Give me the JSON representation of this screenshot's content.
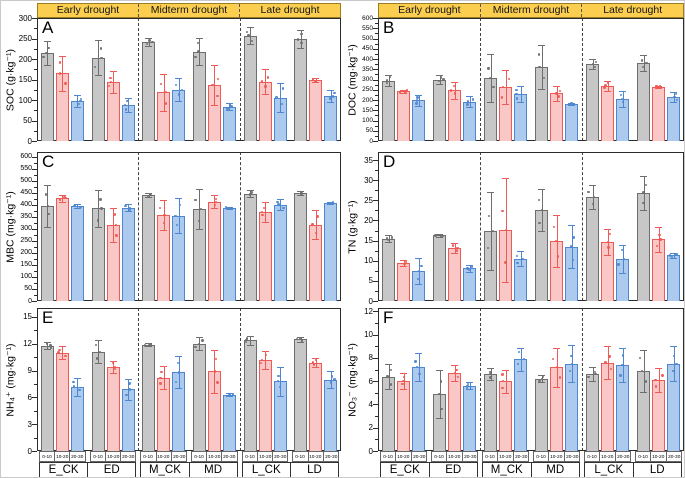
{
  "figure": {
    "header_labels": [
      "Early drought",
      "Midterm drought",
      "Late drought"
    ],
    "depth_labels": [
      "0-10",
      "10-20",
      "20-30"
    ],
    "group_labels": [
      "E_CK",
      "ED",
      "M_CK",
      "MD",
      "L_CK",
      "LD"
    ],
    "colors": {
      "header_bg": "#FBCE50",
      "header_border": "#9a7d22",
      "frame": "#2b2b2b",
      "dashed_line": "#444444",
      "series": [
        {
          "name": "0-10",
          "fill": "#c7c7c7",
          "stroke": "#6e6e6e"
        },
        {
          "name": "10-20",
          "fill": "#f9c8c6",
          "stroke": "#ee5a55"
        },
        {
          "name": "20-30",
          "fill": "#accaee",
          "stroke": "#4e86d0"
        }
      ]
    }
  },
  "chart_data": [
    {
      "type": "bar",
      "label": "A",
      "ylabel": "SOC (g·kg⁻¹)",
      "ylim": [
        0,
        300
      ],
      "ytick_step": 50,
      "ytick_max": 300,
      "categories": [
        "E_CK",
        "ED",
        "M_CK",
        "MD",
        "L_CK",
        "LD"
      ],
      "series": [
        {
          "name": "0-10",
          "values": [
            215,
            203,
            242,
            218,
            257,
            248
          ],
          "errors": [
            30,
            43,
            10,
            33,
            20,
            22
          ]
        },
        {
          "name": "10-20",
          "values": [
            165,
            144,
            119,
            136,
            145,
            149
          ],
          "errors": [
            43,
            26,
            45,
            49,
            30,
            5
          ]
        },
        {
          "name": "20-30",
          "values": [
            97,
            88,
            125,
            84,
            106,
            109
          ],
          "errors": [
            15,
            18,
            28,
            8,
            35,
            15
          ]
        }
      ]
    },
    {
      "type": "bar",
      "label": "B",
      "ylabel": "DOC (mg·kg⁻¹)",
      "ylim": [
        0,
        600
      ],
      "ytick_step": 50,
      "ytick_max": 600,
      "categories": [
        "E_CK",
        "ED",
        "M_CK",
        "MD",
        "L_CK",
        "LD"
      ],
      "series": [
        {
          "name": "0-10",
          "values": [
            295,
            300,
            307,
            360,
            375,
            380
          ],
          "errors": [
            25,
            20,
            118,
            108,
            25,
            38
          ]
        },
        {
          "name": "10-20",
          "values": [
            242,
            247,
            264,
            232,
            270,
            265
          ],
          "errors": [
            8,
            42,
            83,
            35,
            25,
            5
          ]
        },
        {
          "name": "20-30",
          "values": [
            198,
            192,
            228,
            180,
            204,
            215
          ],
          "errors": [
            25,
            28,
            38,
            6,
            40,
            25
          ]
        }
      ]
    },
    {
      "type": "bar",
      "label": "C",
      "ylabel": "MBC  (mg·kg⁻¹)",
      "ylim": [
        0,
        620
      ],
      "ytick_step": 50,
      "ytick_max": 600,
      "categories": [
        "E_CK",
        "ED",
        "M_CK",
        "MD",
        "L_CK",
        "LD"
      ],
      "series": [
        {
          "name": "0-10",
          "values": [
            395,
            385,
            441,
            383,
            446,
            448
          ],
          "errors": [
            88,
            78,
            8,
            82,
            15,
            8
          ]
        },
        {
          "name": "10-20",
          "values": [
            428,
            315,
            357,
            413,
            370,
            318
          ],
          "errors": [
            15,
            70,
            62,
            28,
            40,
            60
          ]
        },
        {
          "name": "20-30",
          "values": [
            396,
            388,
            354,
            388,
            401,
            408
          ],
          "errors": [
            8,
            15,
            73,
            5,
            22,
            6
          ]
        }
      ]
    },
    {
      "type": "bar",
      "label": "D",
      "ylabel": "TN (g·kg⁻¹)",
      "ylim": [
        0,
        37
      ],
      "ytick_step": 5,
      "ytick_max": 35,
      "categories": [
        "E_CK",
        "ED",
        "M_CK",
        "MD",
        "L_CK",
        "LD"
      ],
      "series": [
        {
          "name": "0-10",
          "values": [
            15.5,
            16.3,
            17.4,
            22.6,
            25.8,
            26.9
          ],
          "errors": [
            0.8,
            0.3,
            9.6,
            5.1,
            3.0,
            4.2
          ]
        },
        {
          "name": "10-20",
          "values": [
            9.5,
            13.2,
            17.6,
            14.9,
            14.6,
            15.3
          ],
          "errors": [
            0.8,
            1.2,
            13.0,
            6.4,
            3.3,
            3.2
          ]
        },
        {
          "name": "20-30",
          "values": [
            7.4,
            8.1,
            10.5,
            13.5,
            10.5,
            11.3
          ],
          "errors": [
            3.2,
            0.9,
            1.8,
            5.3,
            3.5,
            0.6
          ]
        }
      ]
    },
    {
      "type": "bar",
      "label": "E",
      "ylabel": "NH₄⁺ (mg·kg⁻¹)",
      "ylim": [
        0,
        16
      ],
      "ytick_step": 3,
      "ytick_max": 15,
      "categories": [
        "E_CK",
        "ED",
        "M_CK",
        "MD",
        "L_CK",
        "LD"
      ],
      "series": [
        {
          "name": "0-10",
          "values": [
            11.8,
            11.1,
            11.9,
            12.0,
            12.4,
            12.5
          ],
          "errors": [
            0.4,
            1.3,
            0.2,
            0.7,
            0.5,
            0.3
          ]
        },
        {
          "name": "10-20",
          "values": [
            11.0,
            9.4,
            8.2,
            8.9,
            10.2,
            9.9
          ],
          "errors": [
            0.7,
            0.7,
            1.3,
            2.4,
            1.0,
            0.5
          ]
        },
        {
          "name": "20-30",
          "values": [
            7.2,
            6.9,
            8.8,
            6.3,
            7.8,
            8.0
          ],
          "errors": [
            1.0,
            1.2,
            1.8,
            0.2,
            1.6,
            1.0
          ]
        }
      ]
    },
    {
      "type": "bar",
      "label": "F",
      "ylabel": "NO₃⁻ (mg·kg⁻¹)",
      "ylim": [
        0,
        12.3
      ],
      "ytick_step": 2,
      "ytick_max": 12,
      "categories": [
        "E_CK",
        "ED",
        "M_CK",
        "MD",
        "L_CK",
        "LD"
      ],
      "series": [
        {
          "name": "0-10",
          "values": [
            6.4,
            4.9,
            6.6,
            6.2,
            6.6,
            6.9
          ],
          "errors": [
            1.1,
            2.1,
            0.5,
            0.3,
            0.6,
            1.8
          ]
        },
        {
          "name": "10-20",
          "values": [
            6.0,
            6.7,
            6.0,
            7.2,
            7.6,
            6.1
          ],
          "errors": [
            0.7,
            0.7,
            1.0,
            1.7,
            1.4,
            1.0
          ]
        },
        {
          "name": "20-30",
          "values": [
            7.2,
            5.6,
            7.9,
            7.5,
            7.4,
            7.5
          ],
          "errors": [
            1.2,
            0.3,
            1.0,
            1.6,
            1.5,
            1.5
          ]
        }
      ]
    }
  ]
}
